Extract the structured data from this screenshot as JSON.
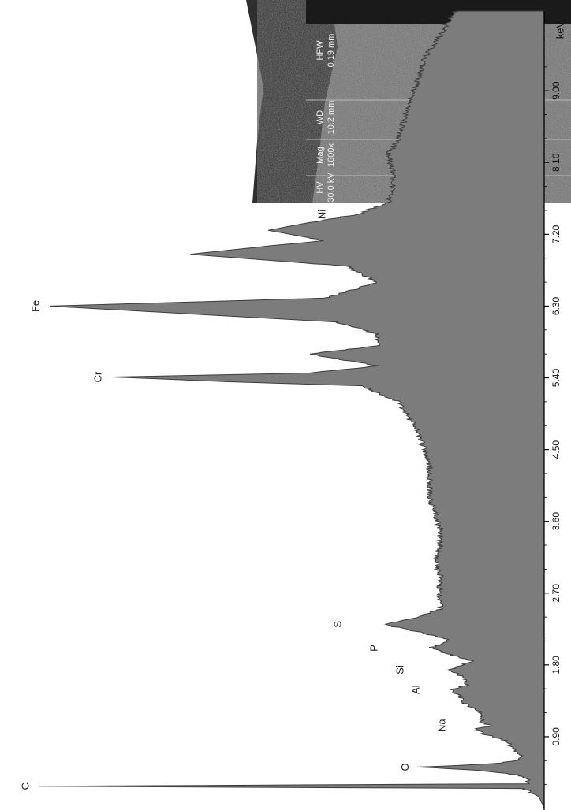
{
  "chart_data": {
    "type": "line",
    "title": "",
    "xlabel": "keV",
    "ylabel": "",
    "xlim": [
      0,
      10
    ],
    "x_ticks": [
      "0.90",
      "1.80",
      "2.70",
      "3.60",
      "4.50",
      "5.40",
      "6.30",
      "7.20",
      "8.10",
      "9.00"
    ],
    "x_tick_values": [
      0.9,
      1.8,
      2.7,
      3.6,
      4.5,
      5.4,
      6.3,
      7.2,
      8.1,
      9.0
    ],
    "grid": false,
    "series": [
      {
        "x": [
          0.0,
          0.15,
          0.25,
          0.28,
          0.31,
          0.36,
          0.42,
          0.48,
          0.52,
          0.56,
          0.6,
          0.66,
          0.74,
          0.84,
          0.94,
          1.0,
          1.04,
          1.08,
          1.2,
          1.3,
          1.4,
          1.49,
          1.55,
          1.62,
          1.74,
          1.85,
          2.01,
          2.1,
          2.2,
          2.31,
          2.4,
          2.5,
          2.7,
          2.9,
          3.1,
          3.3,
          3.5,
          3.7,
          3.9,
          4.1,
          4.3,
          4.5,
          4.7,
          4.9,
          5.1,
          5.3,
          5.35,
          5.41,
          5.46,
          5.55,
          5.7,
          5.8,
          5.95,
          6.1,
          6.3,
          6.4,
          6.6,
          6.8,
          6.95,
          7.06,
          7.12,
          7.25,
          7.35,
          7.45,
          7.6,
          7.8,
          8.0,
          8.2,
          8.4,
          8.6,
          8.8,
          9.0,
          9.2,
          9.4,
          9.6,
          9.8,
          10.0
        ],
        "y": [
          0.0,
          0.01,
          0.04,
          0.97,
          0.03,
          0.03,
          0.05,
          0.13,
          0.24,
          0.1,
          0.05,
          0.04,
          0.06,
          0.07,
          0.12,
          0.13,
          0.1,
          0.12,
          0.12,
          0.15,
          0.16,
          0.18,
          0.15,
          0.15,
          0.18,
          0.14,
          0.22,
          0.18,
          0.23,
          0.31,
          0.24,
          0.2,
          0.2,
          0.2,
          0.21,
          0.2,
          0.2,
          0.21,
          0.22,
          0.22,
          0.22,
          0.23,
          0.24,
          0.26,
          0.28,
          0.35,
          0.6,
          0.83,
          0.45,
          0.32,
          0.45,
          0.32,
          0.32,
          0.4,
          0.95,
          0.42,
          0.32,
          0.38,
          0.68,
          0.52,
          0.42,
          0.53,
          0.45,
          0.36,
          0.3,
          0.29,
          0.29,
          0.3,
          0.28,
          0.27,
          0.26,
          0.25,
          0.24,
          0.23,
          0.21,
          0.19,
          0.17
        ]
      }
    ],
    "annotations": [
      {
        "text": "C",
        "x": 0.28,
        "y": 0.97
      },
      {
        "text": "O",
        "x": 0.52,
        "y": 0.24
      },
      {
        "text": "Na",
        "x": 1.04,
        "y": 0.17
      },
      {
        "text": "Al",
        "x": 1.49,
        "y": 0.22
      },
      {
        "text": "Si",
        "x": 1.74,
        "y": 0.25
      },
      {
        "text": "P",
        "x": 2.01,
        "y": 0.3
      },
      {
        "text": "S",
        "x": 2.31,
        "y": 0.37
      },
      {
        "text": "Cr",
        "x": 5.41,
        "y": 0.83
      },
      {
        "text": "Fe",
        "x": 6.3,
        "y": 0.95
      },
      {
        "text": "Ni",
        "x": 7.45,
        "y": 0.4
      }
    ]
  },
  "inset": {
    "headers": [
      "HV",
      "Mag",
      "WD",
      "HFW"
    ],
    "values": [
      "30.0 kV",
      "1600x",
      "10.2 mm",
      "0.19 mm"
    ]
  }
}
